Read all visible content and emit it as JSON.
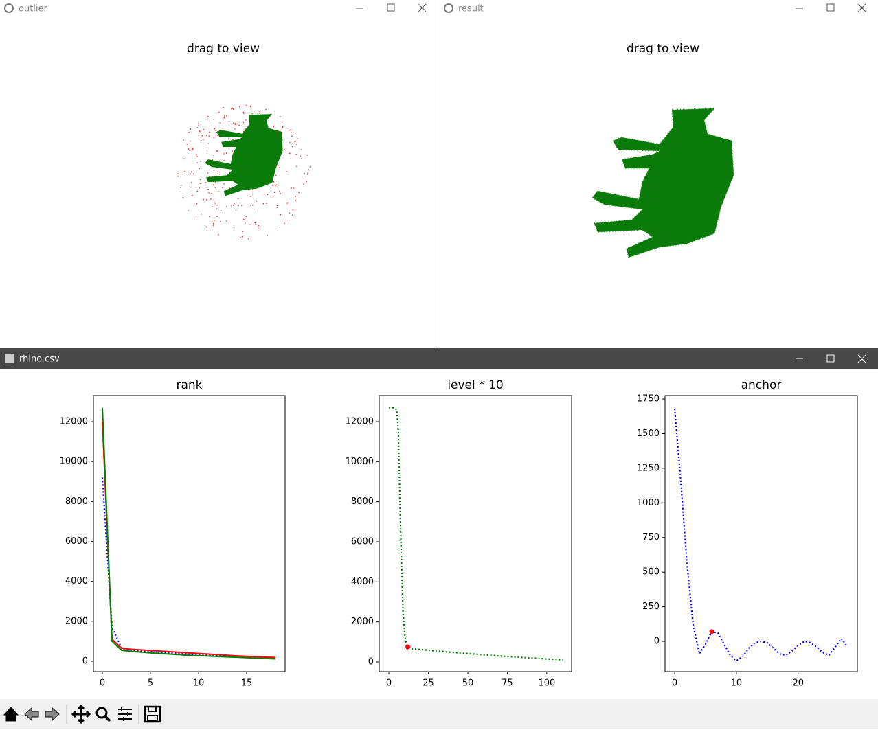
{
  "windows": [
    {
      "title": "outlier",
      "plot_title": "drag to view"
    },
    {
      "title": "result",
      "plot_title": "drag to view"
    }
  ],
  "figure_window": {
    "title": "rhino.csv"
  },
  "chart_data": [
    {
      "type": "line",
      "title": "rank",
      "x": [
        0,
        1,
        2,
        3,
        4,
        5,
        6,
        7,
        8,
        9,
        10,
        11,
        12,
        13,
        14,
        15,
        16,
        17,
        18
      ],
      "series": [
        {
          "color": "blue",
          "linestyle": "dotted",
          "values": [
            9200,
            1700,
            650,
            560,
            520,
            480,
            450,
            420,
            390,
            360,
            330,
            300,
            270,
            250,
            230,
            210,
            190,
            170,
            150
          ]
        },
        {
          "color": "red",
          "linestyle": "solid",
          "values": [
            12000,
            1100,
            650,
            600,
            570,
            540,
            510,
            480,
            450,
            420,
            390,
            360,
            330,
            300,
            270,
            250,
            230,
            210,
            190
          ]
        },
        {
          "color": "green",
          "linestyle": "solid",
          "values": [
            12700,
            1000,
            550,
            500,
            460,
            420,
            390,
            360,
            330,
            300,
            280,
            260,
            240,
            220,
            200,
            180,
            160,
            140,
            120
          ]
        }
      ],
      "xlim": [
        -0.93,
        19
      ],
      "xticks": [
        0,
        5,
        10,
        15
      ],
      "ylim": [
        -516,
        13307
      ],
      "yticks": [
        0,
        2000,
        4000,
        6000,
        8000,
        10000,
        12000
      ]
    },
    {
      "type": "line",
      "title": "level * 10",
      "x": [
        0,
        3,
        5,
        6,
        7,
        8,
        9,
        10,
        11,
        12,
        13,
        15,
        20,
        30,
        40,
        50,
        60,
        70,
        80,
        90,
        100,
        110
      ],
      "series": [
        {
          "color": "green",
          "linestyle": "dotted",
          "values": [
            12700,
            12700,
            12600,
            11500,
            8000,
            5000,
            2500,
            1400,
            900,
            750,
            700,
            650,
            620,
            550,
            480,
            420,
            360,
            300,
            250,
            200,
            150,
            110
          ]
        }
      ],
      "marker": {
        "x": 12,
        "y": 750,
        "color": "red"
      },
      "xlim": [
        -6.1,
        115.7
      ],
      "xticks": [
        0,
        25,
        50,
        75,
        100
      ],
      "ylim": [
        -480,
        13303
      ],
      "yticks": [
        0,
        2000,
        4000,
        6000,
        8000,
        10000,
        12000
      ]
    },
    {
      "type": "line",
      "title": "anchor",
      "x": [
        0,
        1,
        2,
        3,
        4,
        5,
        6,
        7,
        8,
        9,
        10,
        11,
        12,
        13,
        14,
        15,
        16,
        17,
        18,
        19,
        20,
        21,
        22,
        23,
        24,
        25,
        26,
        27,
        28
      ],
      "series": [
        {
          "color": "blue",
          "linestyle": "dotted",
          "values": [
            1680,
            1150,
            560,
            120,
            -90,
            -20,
            70,
            60,
            -20,
            -100,
            -140,
            -110,
            -50,
            -10,
            0,
            -10,
            -50,
            -90,
            -100,
            -70,
            -30,
            0,
            -10,
            -40,
            -80,
            -100,
            -40,
            20,
            -40
          ]
        }
      ],
      "marker": {
        "x": 6,
        "y": 70,
        "color": "red"
      },
      "xlim": [
        -1.56,
        29.6
      ],
      "xticks": [
        0,
        10,
        20
      ],
      "ylim": [
        -218,
        1775
      ],
      "yticks": [
        0,
        250,
        500,
        750,
        1000,
        1250,
        1500,
        1750
      ]
    }
  ]
}
